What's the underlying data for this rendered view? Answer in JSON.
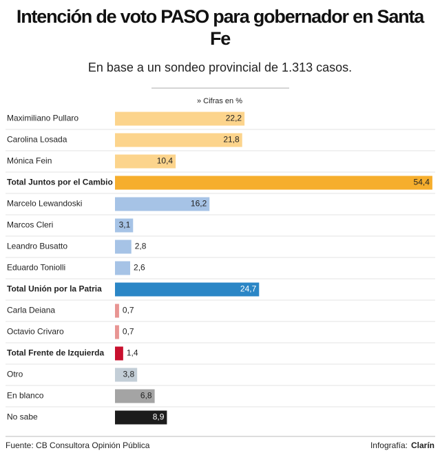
{
  "chart_data": {
    "type": "hbar",
    "title": "Intención de voto PASO para gobernador en Santa Fe",
    "subtitle": "En base a un sondeo provincial de 1.313 casos.",
    "unit_note": "» Cifras en %",
    "categories": [
      "Maximiliano Pullaro",
      "Carolina Losada",
      "Mónica Fein",
      "Total Juntos por el Cambio",
      "Marcelo Lewandoski",
      "Marcos Cleri",
      "Leandro Busatto",
      "Eduardo Toniolli",
      "Total Unión por la Patria",
      "Carla Deiana",
      "Octavio Crivaro",
      "Total Frente de Izquierda",
      "Otro",
      "En blanco",
      "No sabe"
    ],
    "values": [
      22.2,
      21.8,
      10.4,
      54.4,
      16.2,
      3.1,
      2.8,
      2.6,
      24.7,
      0.7,
      0.7,
      1.4,
      3.8,
      6.8,
      8.9
    ],
    "value_labels": [
      "22,2",
      "21,8",
      "10,4",
      "54,4",
      "16,2",
      "3,1",
      "2,8",
      "2,6",
      "24,7",
      "0,7",
      "0,7",
      "1,4",
      "3,8",
      "6,8",
      "8,9"
    ],
    "colors": [
      "#fcd48c",
      "#fcd48c",
      "#fcd48c",
      "#f6ae2d",
      "#a6c3e6",
      "#a6c3e6",
      "#a6c3e6",
      "#a6c3e6",
      "#2b86c6",
      "#e89593",
      "#e89593",
      "#c8102e",
      "#c3ced7",
      "#a4a4a4",
      "#1c1c1c"
    ],
    "emphasis": [
      false,
      false,
      false,
      true,
      false,
      false,
      false,
      false,
      true,
      false,
      false,
      true,
      false,
      false,
      false
    ],
    "xlim": [
      0,
      55
    ],
    "source": "Fuente: CB Consultora Opinión Pública",
    "credit_label": "Infografía:",
    "credit": "Clarín"
  }
}
